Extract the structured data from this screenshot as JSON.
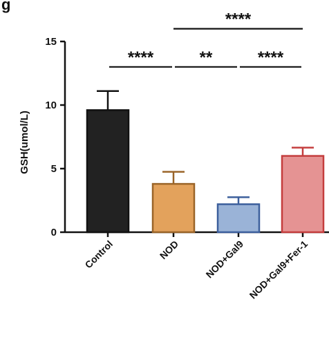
{
  "panel_letter": "g",
  "chart_data": {
    "type": "bar",
    "title": "",
    "xlabel": "",
    "ylabel": "GSH(umol/L)",
    "ylim": [
      0,
      15
    ],
    "yticks": [
      "0",
      "5",
      "10",
      "15"
    ],
    "grid": false,
    "categories": [
      "Control",
      "NOD",
      "NOD+Gal9",
      "NOD+Gal9+Fer-1"
    ],
    "values": [
      9.6,
      3.8,
      2.2,
      6.0
    ],
    "errors": [
      1.5,
      0.95,
      0.55,
      0.65
    ],
    "colors": {
      "fill": [
        "#222222",
        "#e3a25c",
        "#9ab3d7",
        "#e59393"
      ],
      "edge": [
        "#111111",
        "#9a6428",
        "#3c5f9c",
        "#c43d3d"
      ]
    },
    "significance": [
      {
        "from": 0,
        "to": 1,
        "level": 13.0,
        "label": "****"
      },
      {
        "from": 1,
        "to": 2,
        "level": 13.0,
        "label": "**"
      },
      {
        "from": 2,
        "to": 3,
        "level": 13.0,
        "label": "****"
      },
      {
        "from": 1,
        "to": 3,
        "level": 16.0,
        "label": "****"
      }
    ]
  }
}
